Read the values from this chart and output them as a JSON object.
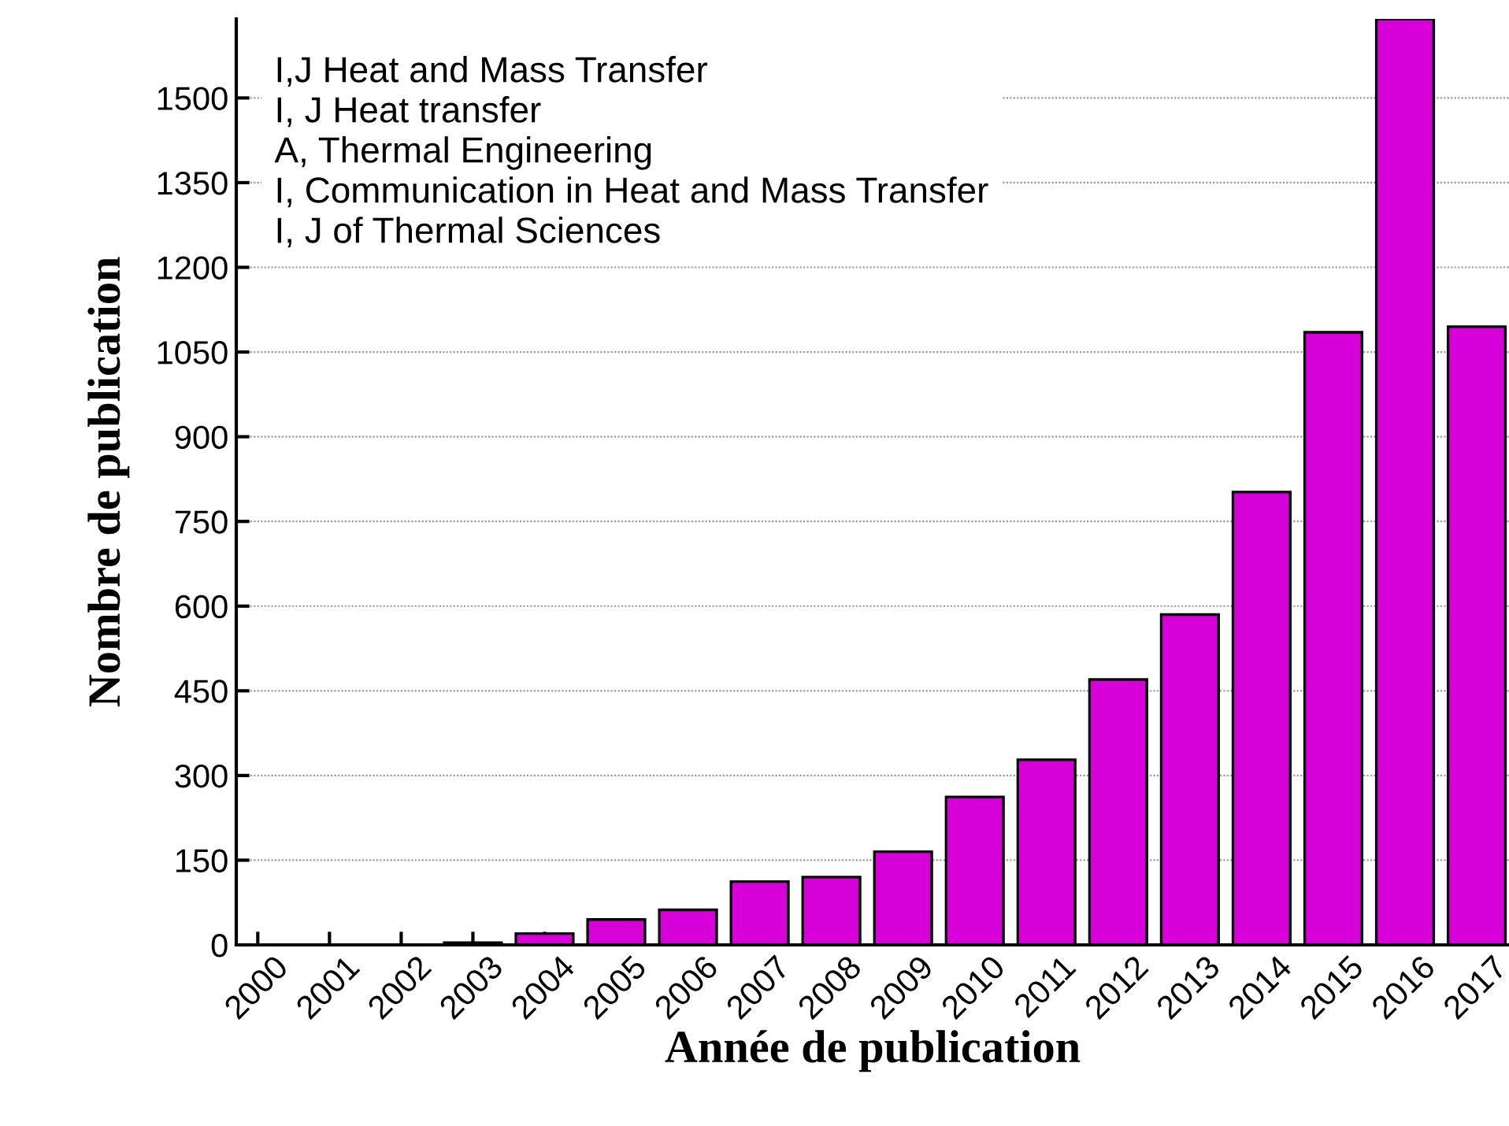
{
  "chart_data": {
    "type": "bar",
    "xlabel": "Année de publication",
    "ylabel": "Nombre de publication",
    "categories": [
      "2000",
      "2001",
      "2002",
      "2003",
      "2004",
      "2005",
      "2006",
      "2007",
      "2008",
      "2009",
      "2010",
      "2011",
      "2012",
      "2013",
      "2014",
      "2015",
      "2016",
      "2017"
    ],
    "values": [
      null,
      null,
      null,
      4,
      20,
      45,
      62,
      112,
      120,
      165,
      262,
      328,
      470,
      585,
      802,
      1085,
      1640,
      1095
    ],
    "color": "#d800d8",
    "ylim": [
      0,
      1640
    ],
    "yticks": [
      0,
      150,
      300,
      450,
      600,
      750,
      900,
      1050,
      1200,
      1350,
      1500
    ],
    "grid": "y",
    "annotations": [
      "I,J Heat and Mass Transfer",
      "I, J Heat transfer",
      "A, Thermal Engineering",
      "I, Communication in Heat and Mass Transfer",
      "I, J of Thermal Sciences"
    ]
  }
}
